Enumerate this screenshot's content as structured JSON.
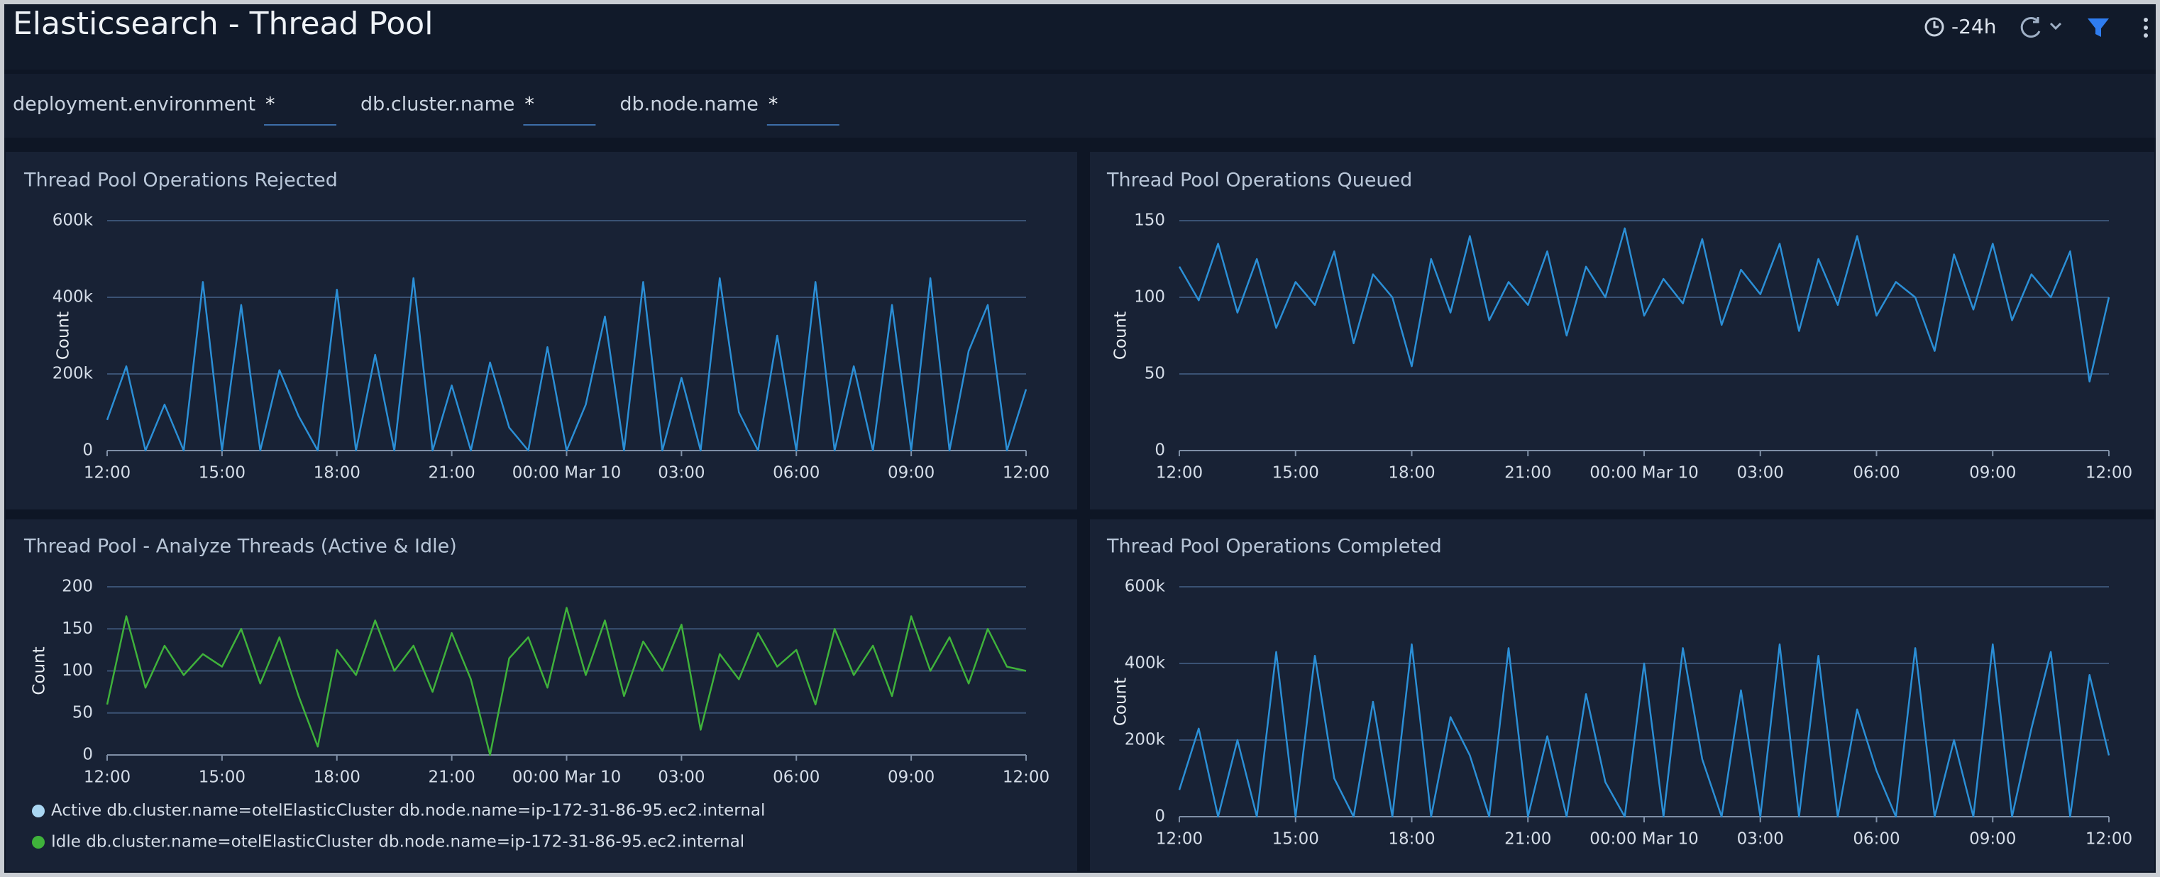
{
  "header": {
    "title": "Elasticsearch - Thread Pool",
    "time_range": "-24h"
  },
  "filters": [
    {
      "label": "deployment.environment",
      "value": "*"
    },
    {
      "label": "db.cluster.name",
      "value": "*"
    },
    {
      "label": "db.node.name",
      "value": "*"
    }
  ],
  "chart_data": [
    {
      "type": "line",
      "title": "Thread Pool Operations Rejected",
      "y_label": "Count",
      "color": "#2b8fd6",
      "categories": [
        "12:00",
        null,
        null,
        null,
        null,
        null,
        "15:00",
        null,
        null,
        null,
        null,
        null,
        "18:00",
        null,
        null,
        null,
        null,
        null,
        "21:00",
        null,
        null,
        null,
        null,
        null,
        "00:00 Mar 10",
        null,
        null,
        null,
        null,
        null,
        "03:00",
        null,
        null,
        null,
        null,
        null,
        "06:00",
        null,
        null,
        null,
        null,
        null,
        "09:00",
        null,
        null,
        null,
        null,
        null,
        "12:00"
      ],
      "values": [
        80000,
        220000,
        0,
        120000,
        0,
        440000,
        0,
        380000,
        0,
        210000,
        90000,
        0,
        420000,
        0,
        250000,
        0,
        450000,
        0,
        170000,
        0,
        230000,
        60000,
        0,
        270000,
        0,
        120000,
        350000,
        0,
        440000,
        0,
        190000,
        0,
        450000,
        100000,
        0,
        300000,
        0,
        440000,
        0,
        220000,
        0,
        380000,
        0,
        450000,
        0,
        260000,
        380000,
        0,
        160000
      ],
      "ylim": [
        0,
        600000
      ],
      "yticks": [
        0,
        {
          "value": 200000,
          "label": "200k"
        },
        {
          "value": 400000,
          "label": "400k"
        },
        {
          "value": 600000,
          "label": "600k"
        }
      ],
      "grid": true
    },
    {
      "type": "line",
      "title": "Thread Pool Operations Queued",
      "y_label": "Count",
      "color": "#2b8fd6",
      "categories": [
        "12:00",
        null,
        null,
        null,
        null,
        null,
        "15:00",
        null,
        null,
        null,
        null,
        null,
        "18:00",
        null,
        null,
        null,
        null,
        null,
        "21:00",
        null,
        null,
        null,
        null,
        null,
        "00:00 Mar 10",
        null,
        null,
        null,
        null,
        null,
        "03:00",
        null,
        null,
        null,
        null,
        null,
        "06:00",
        null,
        null,
        null,
        null,
        null,
        "09:00",
        null,
        null,
        null,
        null,
        null,
        "12:00"
      ],
      "values": [
        120,
        98,
        135,
        90,
        125,
        80,
        110,
        95,
        130,
        70,
        115,
        100,
        55,
        125,
        90,
        140,
        85,
        110,
        95,
        130,
        75,
        120,
        100,
        145,
        88,
        112,
        96,
        138,
        82,
        118,
        102,
        135,
        78,
        125,
        95,
        140,
        88,
        110,
        100,
        65,
        128,
        92,
        135,
        85,
        115,
        100,
        130,
        45,
        100
      ],
      "ylim": [
        0,
        150
      ],
      "yticks": [
        0,
        50,
        100,
        150
      ],
      "grid": true
    },
    {
      "type": "line",
      "title": "Thread Pool - Analyze Threads (Active & Idle)",
      "y_label": "Count",
      "categories": [
        "12:00",
        null,
        null,
        null,
        null,
        null,
        "15:00",
        null,
        null,
        null,
        null,
        null,
        "18:00",
        null,
        null,
        null,
        null,
        null,
        "21:00",
        null,
        null,
        null,
        null,
        null,
        "00:00 Mar 10",
        null,
        null,
        null,
        null,
        null,
        "03:00",
        null,
        null,
        null,
        null,
        null,
        "06:00",
        null,
        null,
        null,
        null,
        null,
        "09:00",
        null,
        null,
        null,
        null,
        null,
        "12:00"
      ],
      "series": [
        {
          "name": "Active db.cluster.name=otelElasticCluster db.node.name=ip-172-31-86-95.ec2.internal",
          "color": "#a9d6f2",
          "values": [
            null,
            null,
            null,
            null,
            null,
            null,
            null,
            null,
            null,
            null,
            null,
            null,
            null,
            null,
            null,
            null,
            null,
            null,
            null,
            null,
            null,
            null,
            null,
            null,
            null,
            null,
            null,
            null,
            null,
            null,
            null,
            null,
            null,
            null,
            null,
            null,
            null,
            null,
            null,
            null,
            null,
            null,
            null,
            null,
            null,
            null,
            null,
            null,
            null
          ]
        },
        {
          "name": "Idle db.cluster.name=otelElasticCluster db.node.name=ip-172-31-86-95.ec2.internal",
          "color": "#3fb23b",
          "values": [
            60,
            165,
            80,
            130,
            95,
            120,
            105,
            150,
            85,
            140,
            70,
            10,
            125,
            95,
            160,
            100,
            130,
            75,
            145,
            90,
            0,
            115,
            140,
            80,
            175,
            95,
            160,
            70,
            135,
            100,
            155,
            30,
            120,
            90,
            145,
            105,
            125,
            60,
            150,
            95,
            130,
            70,
            165,
            100,
            140,
            85,
            150,
            105,
            100
          ]
        }
      ],
      "ylim": [
        0,
        200
      ],
      "yticks": [
        0,
        50,
        100,
        150,
        200
      ],
      "grid": true
    },
    {
      "type": "line",
      "title": "Thread Pool Operations Completed",
      "y_label": "Count",
      "color": "#2b8fd6",
      "categories": [
        "12:00",
        null,
        null,
        null,
        null,
        null,
        "15:00",
        null,
        null,
        null,
        null,
        null,
        "18:00",
        null,
        null,
        null,
        null,
        null,
        "21:00",
        null,
        null,
        null,
        null,
        null,
        "00:00 Mar 10",
        null,
        null,
        null,
        null,
        null,
        "03:00",
        null,
        null,
        null,
        null,
        null,
        "06:00",
        null,
        null,
        null,
        null,
        null,
        "09:00",
        null,
        null,
        null,
        null,
        null,
        "12:00"
      ],
      "values": [
        70000,
        230000,
        0,
        200000,
        0,
        430000,
        0,
        420000,
        100000,
        0,
        300000,
        0,
        450000,
        0,
        260000,
        160000,
        0,
        440000,
        0,
        210000,
        0,
        320000,
        90000,
        0,
        400000,
        0,
        440000,
        150000,
        0,
        330000,
        0,
        450000,
        0,
        420000,
        0,
        280000,
        120000,
        0,
        440000,
        0,
        200000,
        0,
        450000,
        0,
        230000,
        430000,
        0,
        370000,
        160000
      ],
      "ylim": [
        0,
        600000
      ],
      "yticks": [
        0,
        {
          "value": 200000,
          "label": "200k"
        },
        {
          "value": 400000,
          "label": "400k"
        },
        {
          "value": 600000,
          "label": "600k"
        }
      ],
      "grid": true
    }
  ]
}
